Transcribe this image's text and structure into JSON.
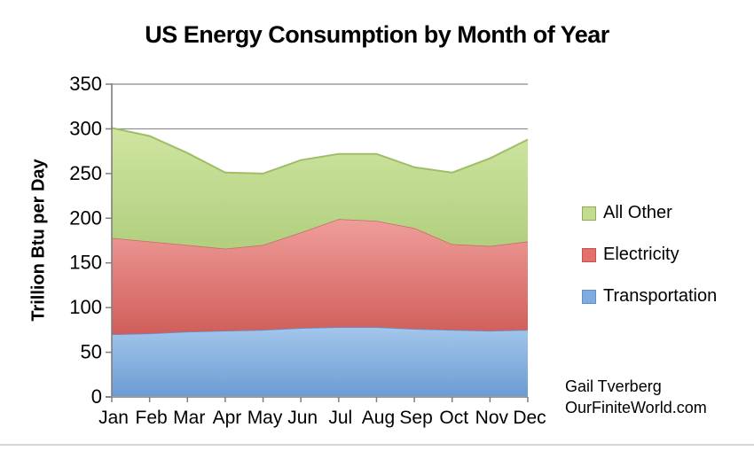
{
  "title": "US Energy Consumption by Month of Year",
  "y_axis": {
    "title": "Trillion Btu per Day",
    "ticks": [
      0,
      50,
      100,
      150,
      200,
      250,
      300,
      350
    ]
  },
  "attribution": {
    "line1": "Gail Tverberg",
    "line2": "OurFiniteWorld.com"
  },
  "colors": {
    "gridline": "#8a8a8a",
    "axis": "#7f7f7f",
    "bottom_axis": "#9a9a9a"
  },
  "chart_data": {
    "type": "area",
    "stacked": true,
    "title": "US Energy Consumption by Month of Year",
    "xlabel": "",
    "ylabel": "Trillion Btu per Day",
    "ylim": [
      0,
      350
    ],
    "grid": "horizontal",
    "legend_position": "right",
    "categories": [
      "Jan",
      "Feb",
      "Mar",
      "Apr",
      "May",
      "Jun",
      "Jul",
      "Aug",
      "Sep",
      "Oct",
      "Nov",
      "Dec"
    ],
    "series": [
      {
        "name": "Transportation",
        "values": [
          70,
          71,
          73,
          74,
          75,
          77,
          78,
          78,
          76,
          75,
          74,
          75
        ],
        "fill_top": "#a3c6ec",
        "fill_bottom": "#6b9cd3",
        "line_color": "#5d90ca",
        "swatch_fill": "#7fabdf",
        "swatch_border": "#5f8fc7"
      },
      {
        "name": "Electricity",
        "values": [
          108,
          103,
          97,
          92,
          95,
          107,
          121,
          119,
          113,
          96,
          95,
          99
        ],
        "fill_top": "#ef9e9b",
        "fill_bottom": "#d05e5a",
        "line_color": "#cc6763",
        "swatch_fill": "#e2716e",
        "swatch_border": "#c25552"
      },
      {
        "name": "All Other",
        "values": [
          123,
          118,
          103,
          85,
          80,
          81,
          73,
          75,
          68,
          80,
          98,
          114
        ],
        "fill_top": "#cfe5a1",
        "fill_bottom": "#b1cf7e",
        "line_color": "#9fbd66",
        "swatch_fill": "#c2dc92",
        "swatch_border": "#8fae55"
      }
    ],
    "cumulative_totals": [
      301,
      292,
      273,
      251,
      250,
      265,
      272,
      272,
      257,
      251,
      267,
      288
    ]
  }
}
